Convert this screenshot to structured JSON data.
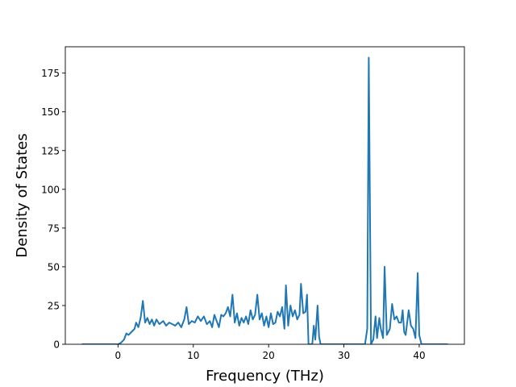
{
  "chart_data": {
    "type": "line",
    "title": "",
    "xlabel": "Frequency (THz)",
    "ylabel": "Density of States",
    "xlim": [
      -7.0,
      46.0
    ],
    "ylim": [
      0,
      192
    ],
    "xticks": [
      0,
      10,
      20,
      30,
      40
    ],
    "yticks": [
      0,
      25,
      50,
      75,
      100,
      125,
      150,
      175
    ],
    "grid": false,
    "legend": "none",
    "series": [
      {
        "color": "#1f77b4",
        "points": [
          [
            -4.8,
            0
          ],
          [
            0.0,
            0
          ],
          [
            0.4,
            1
          ],
          [
            0.8,
            3
          ],
          [
            1.1,
            7
          ],
          [
            1.4,
            6
          ],
          [
            1.8,
            8
          ],
          [
            2.2,
            10
          ],
          [
            2.4,
            14
          ],
          [
            2.7,
            11
          ],
          [
            3.0,
            17
          ],
          [
            3.3,
            28
          ],
          [
            3.6,
            14
          ],
          [
            3.9,
            17
          ],
          [
            4.2,
            13
          ],
          [
            4.5,
            16
          ],
          [
            4.8,
            12
          ],
          [
            5.1,
            16
          ],
          [
            5.5,
            13
          ],
          [
            6.0,
            15
          ],
          [
            6.4,
            12
          ],
          [
            6.8,
            14
          ],
          [
            7.2,
            13
          ],
          [
            7.6,
            12
          ],
          [
            8.0,
            14
          ],
          [
            8.4,
            11
          ],
          [
            8.8,
            16
          ],
          [
            9.1,
            24
          ],
          [
            9.4,
            13
          ],
          [
            9.8,
            15
          ],
          [
            10.2,
            14
          ],
          [
            10.6,
            18
          ],
          [
            11.0,
            15
          ],
          [
            11.4,
            18
          ],
          [
            11.8,
            13
          ],
          [
            12.2,
            15
          ],
          [
            12.5,
            11
          ],
          [
            12.8,
            19
          ],
          [
            13.1,
            15
          ],
          [
            13.4,
            11
          ],
          [
            13.7,
            19
          ],
          [
            14.0,
            18
          ],
          [
            14.3,
            20
          ],
          [
            14.6,
            24
          ],
          [
            14.9,
            18
          ],
          [
            15.2,
            32
          ],
          [
            15.5,
            14
          ],
          [
            15.8,
            20
          ],
          [
            16.1,
            12
          ],
          [
            16.4,
            17
          ],
          [
            16.7,
            14
          ],
          [
            17.0,
            18
          ],
          [
            17.3,
            13
          ],
          [
            17.6,
            22
          ],
          [
            17.9,
            16
          ],
          [
            18.2,
            19
          ],
          [
            18.5,
            32
          ],
          [
            18.8,
            16
          ],
          [
            19.1,
            20
          ],
          [
            19.4,
            12
          ],
          [
            19.7,
            18
          ],
          [
            20.0,
            11
          ],
          [
            20.3,
            20
          ],
          [
            20.6,
            13
          ],
          [
            20.9,
            14
          ],
          [
            21.2,
            21
          ],
          [
            21.5,
            18
          ],
          [
            21.8,
            24
          ],
          [
            22.1,
            10
          ],
          [
            22.3,
            38
          ],
          [
            22.6,
            12
          ],
          [
            22.9,
            25
          ],
          [
            23.2,
            18
          ],
          [
            23.5,
            22
          ],
          [
            23.8,
            16
          ],
          [
            24.1,
            19
          ],
          [
            24.3,
            39
          ],
          [
            24.6,
            20
          ],
          [
            24.9,
            21
          ],
          [
            25.1,
            32
          ],
          [
            25.3,
            0
          ],
          [
            25.8,
            0
          ],
          [
            26.0,
            12
          ],
          [
            26.2,
            3
          ],
          [
            26.5,
            25
          ],
          [
            26.7,
            5
          ],
          [
            26.9,
            0
          ],
          [
            32.8,
            0
          ],
          [
            33.1,
            10
          ],
          [
            33.3,
            185
          ],
          [
            33.6,
            0
          ],
          [
            33.9,
            3
          ],
          [
            34.2,
            18
          ],
          [
            34.4,
            4
          ],
          [
            34.7,
            17
          ],
          [
            34.9,
            10
          ],
          [
            35.2,
            4
          ],
          [
            35.4,
            50
          ],
          [
            35.7,
            6
          ],
          [
            36.1,
            10
          ],
          [
            36.4,
            26
          ],
          [
            36.7,
            16
          ],
          [
            37.0,
            18
          ],
          [
            37.3,
            14
          ],
          [
            37.6,
            14
          ],
          [
            37.8,
            22
          ],
          [
            38.0,
            8
          ],
          [
            38.2,
            6
          ],
          [
            38.6,
            22
          ],
          [
            38.9,
            12
          ],
          [
            39.2,
            10
          ],
          [
            39.5,
            4
          ],
          [
            39.8,
            46
          ],
          [
            40.0,
            6
          ],
          [
            40.3,
            0
          ],
          [
            43.8,
            0
          ]
        ]
      }
    ]
  }
}
